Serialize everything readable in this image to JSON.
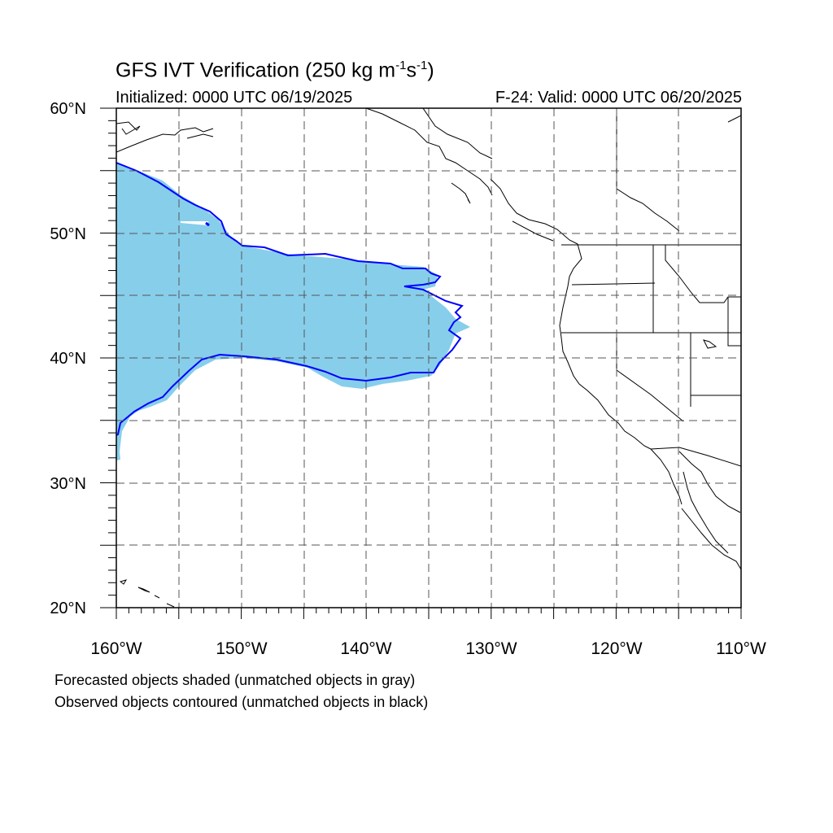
{
  "map": {
    "title_prefix": "GFS IVT Verification (250 kg m",
    "title_exp1": "-1",
    "title_mid": "s",
    "title_exp2": "-1",
    "title_suffix": ")",
    "initialized": "Initialized: 0000 UTC 06/19/2025",
    "valid": "F-24: Valid: 0000 UTC 06/20/2025",
    "lat_labels": [
      "60°N",
      "50°N",
      "40°N",
      "30°N",
      "20°N"
    ],
    "lon_labels": [
      "160°W",
      "150°W",
      "140°W",
      "130°W",
      "120°W",
      "110°W"
    ],
    "extent": {
      "lon_min": -160,
      "lon_max": -110,
      "lat_min": 20,
      "lat_max": 60
    },
    "colors": {
      "forecast_fill": "#87ceeb",
      "observed_contour": "#0000ff",
      "coast": "#000000",
      "grid": "#555555"
    }
  },
  "legend": {
    "line1": "Forecasted objects shaded (unmatched objects in gray)",
    "line2": "Observed objects contoured (unmatched objects in black)"
  }
}
